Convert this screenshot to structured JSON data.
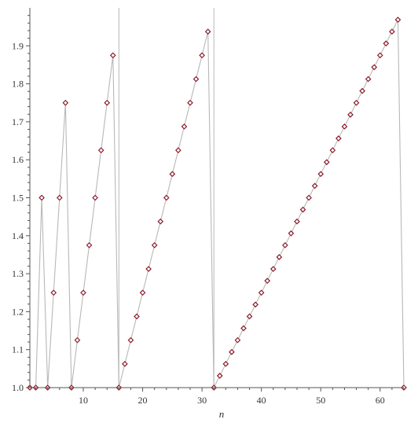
{
  "chart_data": {
    "type": "scatter",
    "title": "",
    "xlabel": "n",
    "ylabel": "",
    "xlim": [
      1,
      64
    ],
    "ylim": [
      1.0,
      2.0
    ],
    "x_ticks": [
      10,
      20,
      30,
      40,
      50,
      60
    ],
    "y_ticks": [
      1.0,
      1.1,
      1.2,
      1.3,
      1.4,
      1.5,
      1.6,
      1.7,
      1.8,
      1.9
    ],
    "x_tick_labels": [
      "10",
      "20",
      "30",
      "40",
      "50",
      "60"
    ],
    "y_tick_labels": [
      "1.0",
      "1.1",
      "1.2",
      "1.3",
      "1.4",
      "1.5",
      "1.6",
      "1.7",
      "1.8",
      "1.9"
    ],
    "formula": "y = n / 2^floor(log2(n))",
    "n_range": [
      1,
      64
    ],
    "segments": [
      {
        "start": 1,
        "end": 2
      },
      {
        "start": 2,
        "end": 4
      },
      {
        "start": 4,
        "end": 8
      },
      {
        "start": 8,
        "end": 16
      },
      {
        "start": 16,
        "end": 32
      },
      {
        "start": 32,
        "end": 64
      }
    ],
    "vertical_reference_lines": [
      16,
      32
    ],
    "grid": false,
    "legend": "none",
    "colors": {
      "line": "#b8b8b8",
      "marker": "#8b1a2b",
      "axis": "#555555"
    }
  }
}
